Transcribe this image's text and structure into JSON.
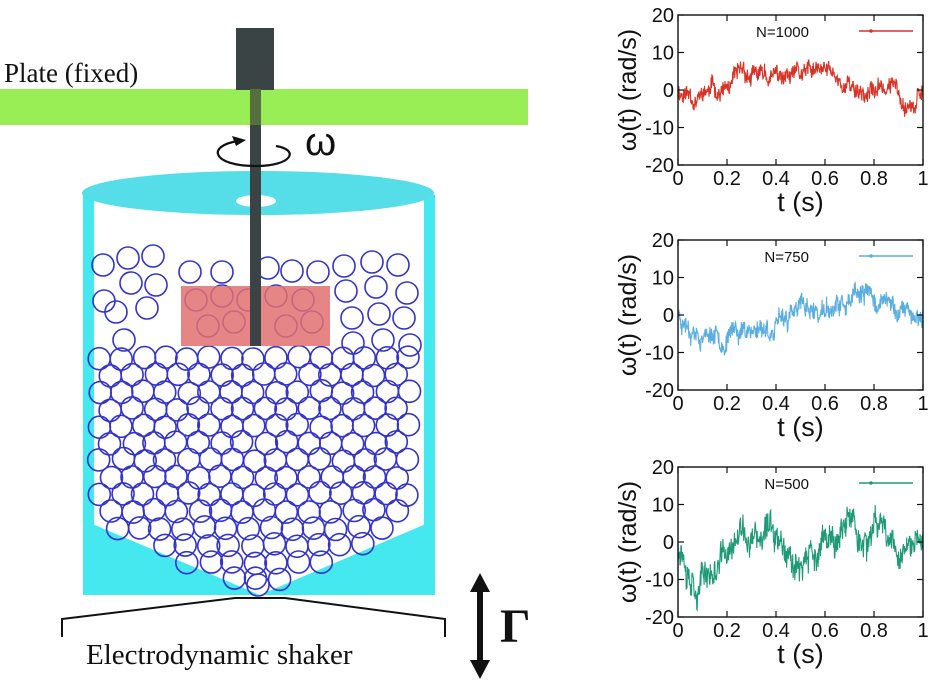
{
  "labels": {
    "plate": "Plate (fixed)",
    "omega_symbol": "ω",
    "shaker": "Electrodynamic shaker",
    "gamma_symbol": "Γ"
  },
  "colors": {
    "plate": "#99ee55",
    "container": "#44e8ee",
    "lid": "#55dde8",
    "rod": "#3a4444",
    "vane": "#e07070",
    "beads": "#3333cc"
  },
  "plots": [
    {
      "legend": "N=1000",
      "color": "#d93326",
      "ylabel": "ω(t)  (rad/s)",
      "xlabel": "t (s)",
      "yticks": [
        "20",
        "10",
        "0",
        "-10",
        "-20"
      ],
      "xticks": [
        "0",
        "0.2",
        "0.4",
        "0.6",
        "0.8",
        "1"
      ],
      "ylim": [
        -20,
        20
      ],
      "xlim": [
        0,
        1
      ],
      "seed": 11,
      "amp": 5.5
    },
    {
      "legend": "N=750",
      "color": "#5aaee0",
      "ylabel": "ω(t)  (rad/s)",
      "xlabel": "t (s)",
      "yticks": [
        "20",
        "10",
        "0",
        "-10",
        "-20"
      ],
      "xticks": [
        "0",
        "0.2",
        "0.4",
        "0.6",
        "0.8",
        "1"
      ],
      "ylim": [
        -20,
        20
      ],
      "xlim": [
        0,
        1
      ],
      "seed": 23,
      "amp": 6.0
    },
    {
      "legend": "N=500",
      "color": "#1e9a76",
      "ylabel": "ω(t)  (rad/s)",
      "xlabel": "t (s)",
      "yticks": [
        "20",
        "10",
        "0",
        "-10",
        "-20"
      ],
      "xticks": [
        "0",
        "0.2",
        "0.4",
        "0.6",
        "0.8",
        "1"
      ],
      "ylim": [
        -20,
        20
      ],
      "xlim": [
        0,
        1
      ],
      "seed": 37,
      "amp": 9.0
    }
  ]
}
